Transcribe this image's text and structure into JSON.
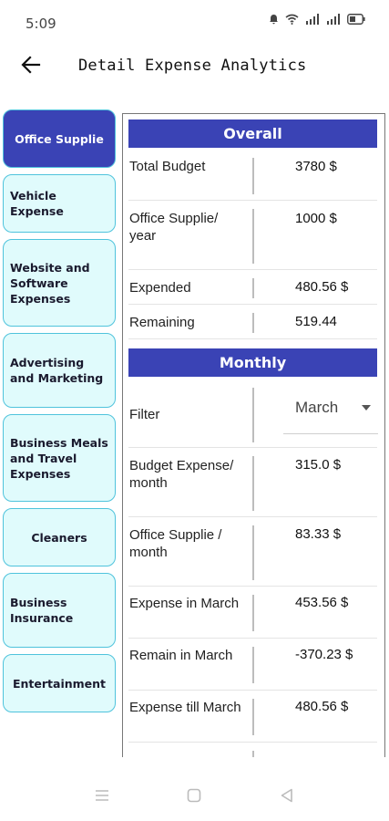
{
  "status_bar": {
    "time": "5:09",
    "icons": [
      "alarm-icon",
      "wifi-icon",
      "signal-icon",
      "signal-icon",
      "battery-icon"
    ]
  },
  "app_bar": {
    "title": "Detail Expense Analytics"
  },
  "sidebar": {
    "items": [
      {
        "label": "Office Supplie",
        "active": true
      },
      {
        "label": "Vehicle Expense",
        "active": false
      },
      {
        "label": "Website and Software Expenses",
        "active": false
      },
      {
        "label": "Advertising and Marketing",
        "active": false
      },
      {
        "label": "Business Meals and Travel Expenses",
        "active": false
      },
      {
        "label": "Cleaners",
        "active": false
      },
      {
        "label": "Business Insurance",
        "active": false
      },
      {
        "label": "Entertainment",
        "active": false
      }
    ]
  },
  "overall": {
    "header": "Overall",
    "rows": [
      {
        "label": "Total Budget",
        "value": "3780 $"
      },
      {
        "label": "Office Supplie/ year",
        "value": "1000 $"
      },
      {
        "label": "Expended",
        "value": "480.56 $"
      },
      {
        "label": "Remaining",
        "value": "519.44"
      }
    ]
  },
  "monthly": {
    "header": "Monthly",
    "filter": {
      "label": "Filter",
      "selected": "March"
    },
    "rows": [
      {
        "label": "Budget Expense/ month",
        "value": "315.0 $"
      },
      {
        "label": "Office Supplie / month",
        "value": "83.33 $"
      },
      {
        "label": "Expense in March",
        "value": "453.56 $"
      },
      {
        "label": "Remain in March",
        "value": "-370.23 $"
      },
      {
        "label": "Expense till March",
        "value": "480.56 $"
      }
    ]
  },
  "colors": {
    "primary": "#3a43b5",
    "sidebar_bg": "#e0fbfc",
    "sidebar_border": "#4fc3dc"
  }
}
